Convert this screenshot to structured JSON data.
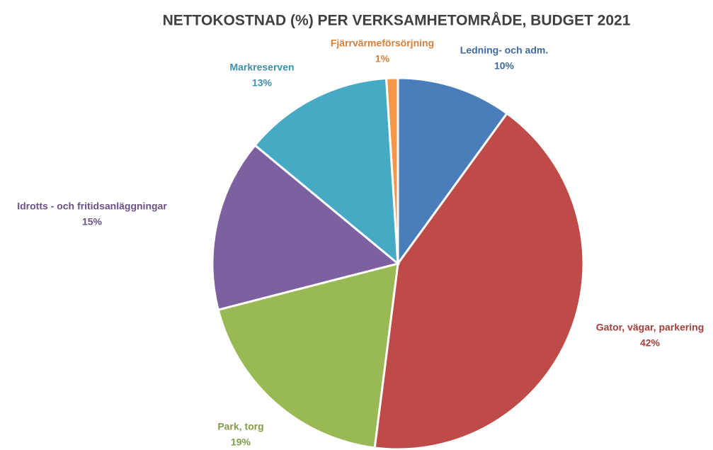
{
  "chart_data": {
    "type": "pie",
    "title": "NETTOKOSTNAD (%) PER VERKSAMHETOMRÅDE, BUDGET 2021",
    "categories": [
      "Ledning- och adm.",
      "Gator, vägar, parkering",
      "Park, torg",
      "Idrotts - och fritidsanläggningar",
      "Markreserven",
      "Fjärrvärmeförsörjning"
    ],
    "values": [
      10,
      42,
      19,
      15,
      13,
      1
    ],
    "value_labels": [
      "10%",
      "42%",
      "19%",
      "15%",
      "13%",
      "1%"
    ],
    "colors": [
      "#4a7ebb",
      "#be4b48",
      "#98b954",
      "#7d60a0",
      "#46aac5",
      "#f79646"
    ]
  }
}
